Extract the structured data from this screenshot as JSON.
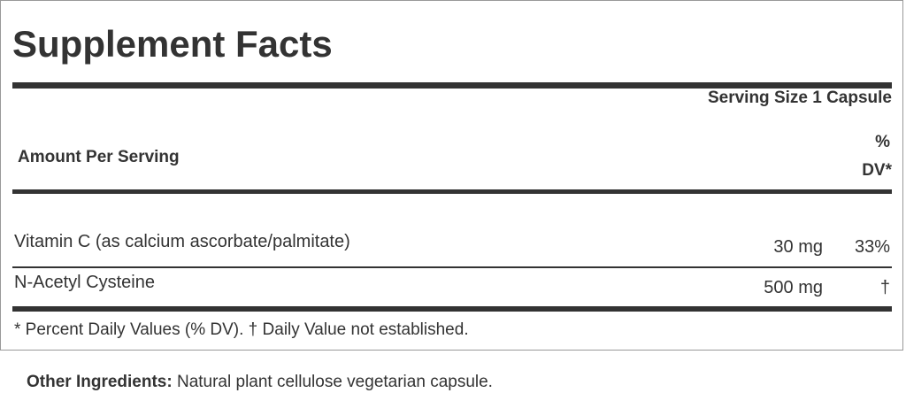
{
  "title": "Supplement Facts",
  "serving_size": "Serving Size 1 Capsule",
  "amount_per_serving": "Amount Per Serving",
  "dv_header_line1": "%",
  "dv_header_line2": "DV*",
  "nutrients": [
    {
      "name": "Vitamin C (as calcium ascorbate/palmitate)",
      "amount": "30 mg",
      "dv": "33%"
    },
    {
      "name": "N-Acetyl Cysteine",
      "amount": "500 mg",
      "dv": "†"
    }
  ],
  "footnote": "* Percent Daily Values (% DV). † Daily Value not established.",
  "other_ingredients": {
    "label": "Other Ingredients:",
    "value": "Natural plant cellulose vegetarian capsule."
  }
}
